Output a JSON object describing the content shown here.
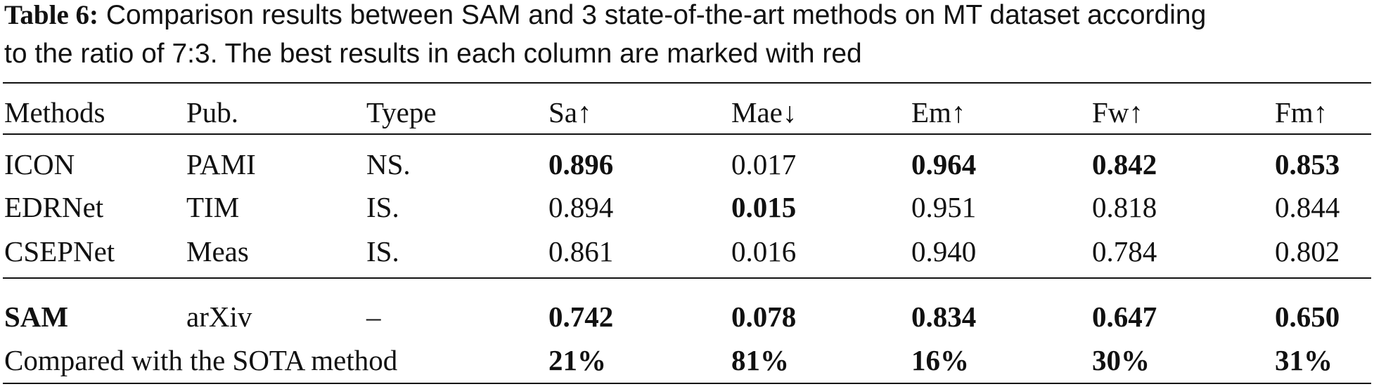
{
  "caption": {
    "label": "Table 6:",
    "text": "Comparison results between SAM and 3 state-of-the-art methods on MT dataset according",
    "text2": "to the ratio of 7:3. The best results in each column are marked with red"
  },
  "table": {
    "header": [
      "Methods",
      "Pub.",
      "Tyepe",
      "Sa↑",
      "Mae↓",
      "Em↑",
      "Fw↑",
      "Fm↑"
    ],
    "rows": [
      [
        "ICON",
        "PAMI",
        "NS.",
        "0.896",
        "0.017",
        "0.964",
        "0.842",
        "0.853"
      ],
      [
        "EDRNet",
        "TIM",
        "IS.",
        "0.894",
        "0.015",
        "0.951",
        "0.818",
        "0.844"
      ],
      [
        "CSEPNet",
        "Meas",
        "IS.",
        "0.861",
        "0.016",
        "0.940",
        "0.784",
        "0.802"
      ],
      [
        "SAM",
        "arXiv",
        "–",
        "0.742",
        "0.078",
        "0.834",
        "0.647",
        "0.650"
      ]
    ],
    "bold": [
      [
        0,
        3
      ],
      [
        0,
        5
      ],
      [
        0,
        6
      ],
      [
        0,
        7
      ],
      [
        1,
        4
      ],
      [
        3,
        0
      ],
      [
        3,
        3
      ],
      [
        3,
        4
      ],
      [
        3,
        5
      ],
      [
        3,
        6
      ],
      [
        3,
        7
      ]
    ],
    "footer": {
      "label": "Compared with the SOTA method",
      "values": [
        "21%",
        "81%",
        "16%",
        "30%",
        "31%"
      ]
    }
  }
}
